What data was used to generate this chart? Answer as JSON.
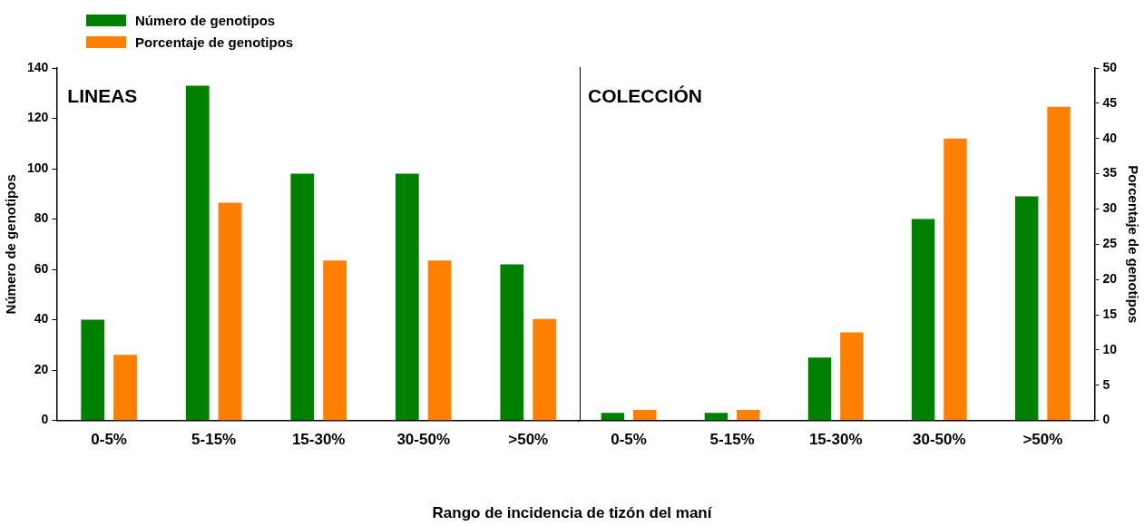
{
  "chart_data": [
    {
      "type": "bar",
      "xlabel": "Rango de incidencia de tizón del maní",
      "ylabel": "Número de genotipos",
      "legend": "top left",
      "annotations": [
        "LINEAS"
      ],
      "categories": [
        "0-5%",
        "5-15%",
        "15-30%",
        "30-50%",
        ">50%"
      ],
      "series": [
        {
          "name": "Número de genotipos",
          "color": "#008000",
          "axis": "y",
          "values": [
            40,
            133,
            98,
            98,
            62
          ]
        },
        {
          "name": "Porcentaje de genotipos",
          "color": "#ff8000",
          "axis": "y2",
          "values": [
            9.3,
            30.9,
            22.7,
            22.7,
            14.4
          ]
        }
      ],
      "ylim": [
        0,
        140
      ],
      "yticks": [
        0,
        20,
        40,
        60,
        80,
        100,
        120,
        140
      ],
      "y2lim": [
        0,
        50
      ]
    },
    {
      "type": "bar",
      "y2label": "Porcentaje de genotipos",
      "annotations": [
        "COLECCIÓN"
      ],
      "categories": [
        "0-5%",
        "5-15%",
        "15-30%",
        "30-50%",
        ">50%"
      ],
      "series": [
        {
          "color": "#008000",
          "axis": "y",
          "values": [
            3,
            3,
            25,
            80,
            89
          ]
        },
        {
          "color": "#ff8000",
          "axis": "y2",
          "values": [
            1.5,
            1.5,
            12.5,
            40,
            44.5
          ]
        }
      ],
      "ylim": [
        0,
        140
      ],
      "y2lim": [
        0,
        50
      ],
      "y2ticks": [
        0,
        5,
        10,
        15,
        20,
        25,
        30,
        35,
        40,
        45,
        50
      ]
    }
  ]
}
